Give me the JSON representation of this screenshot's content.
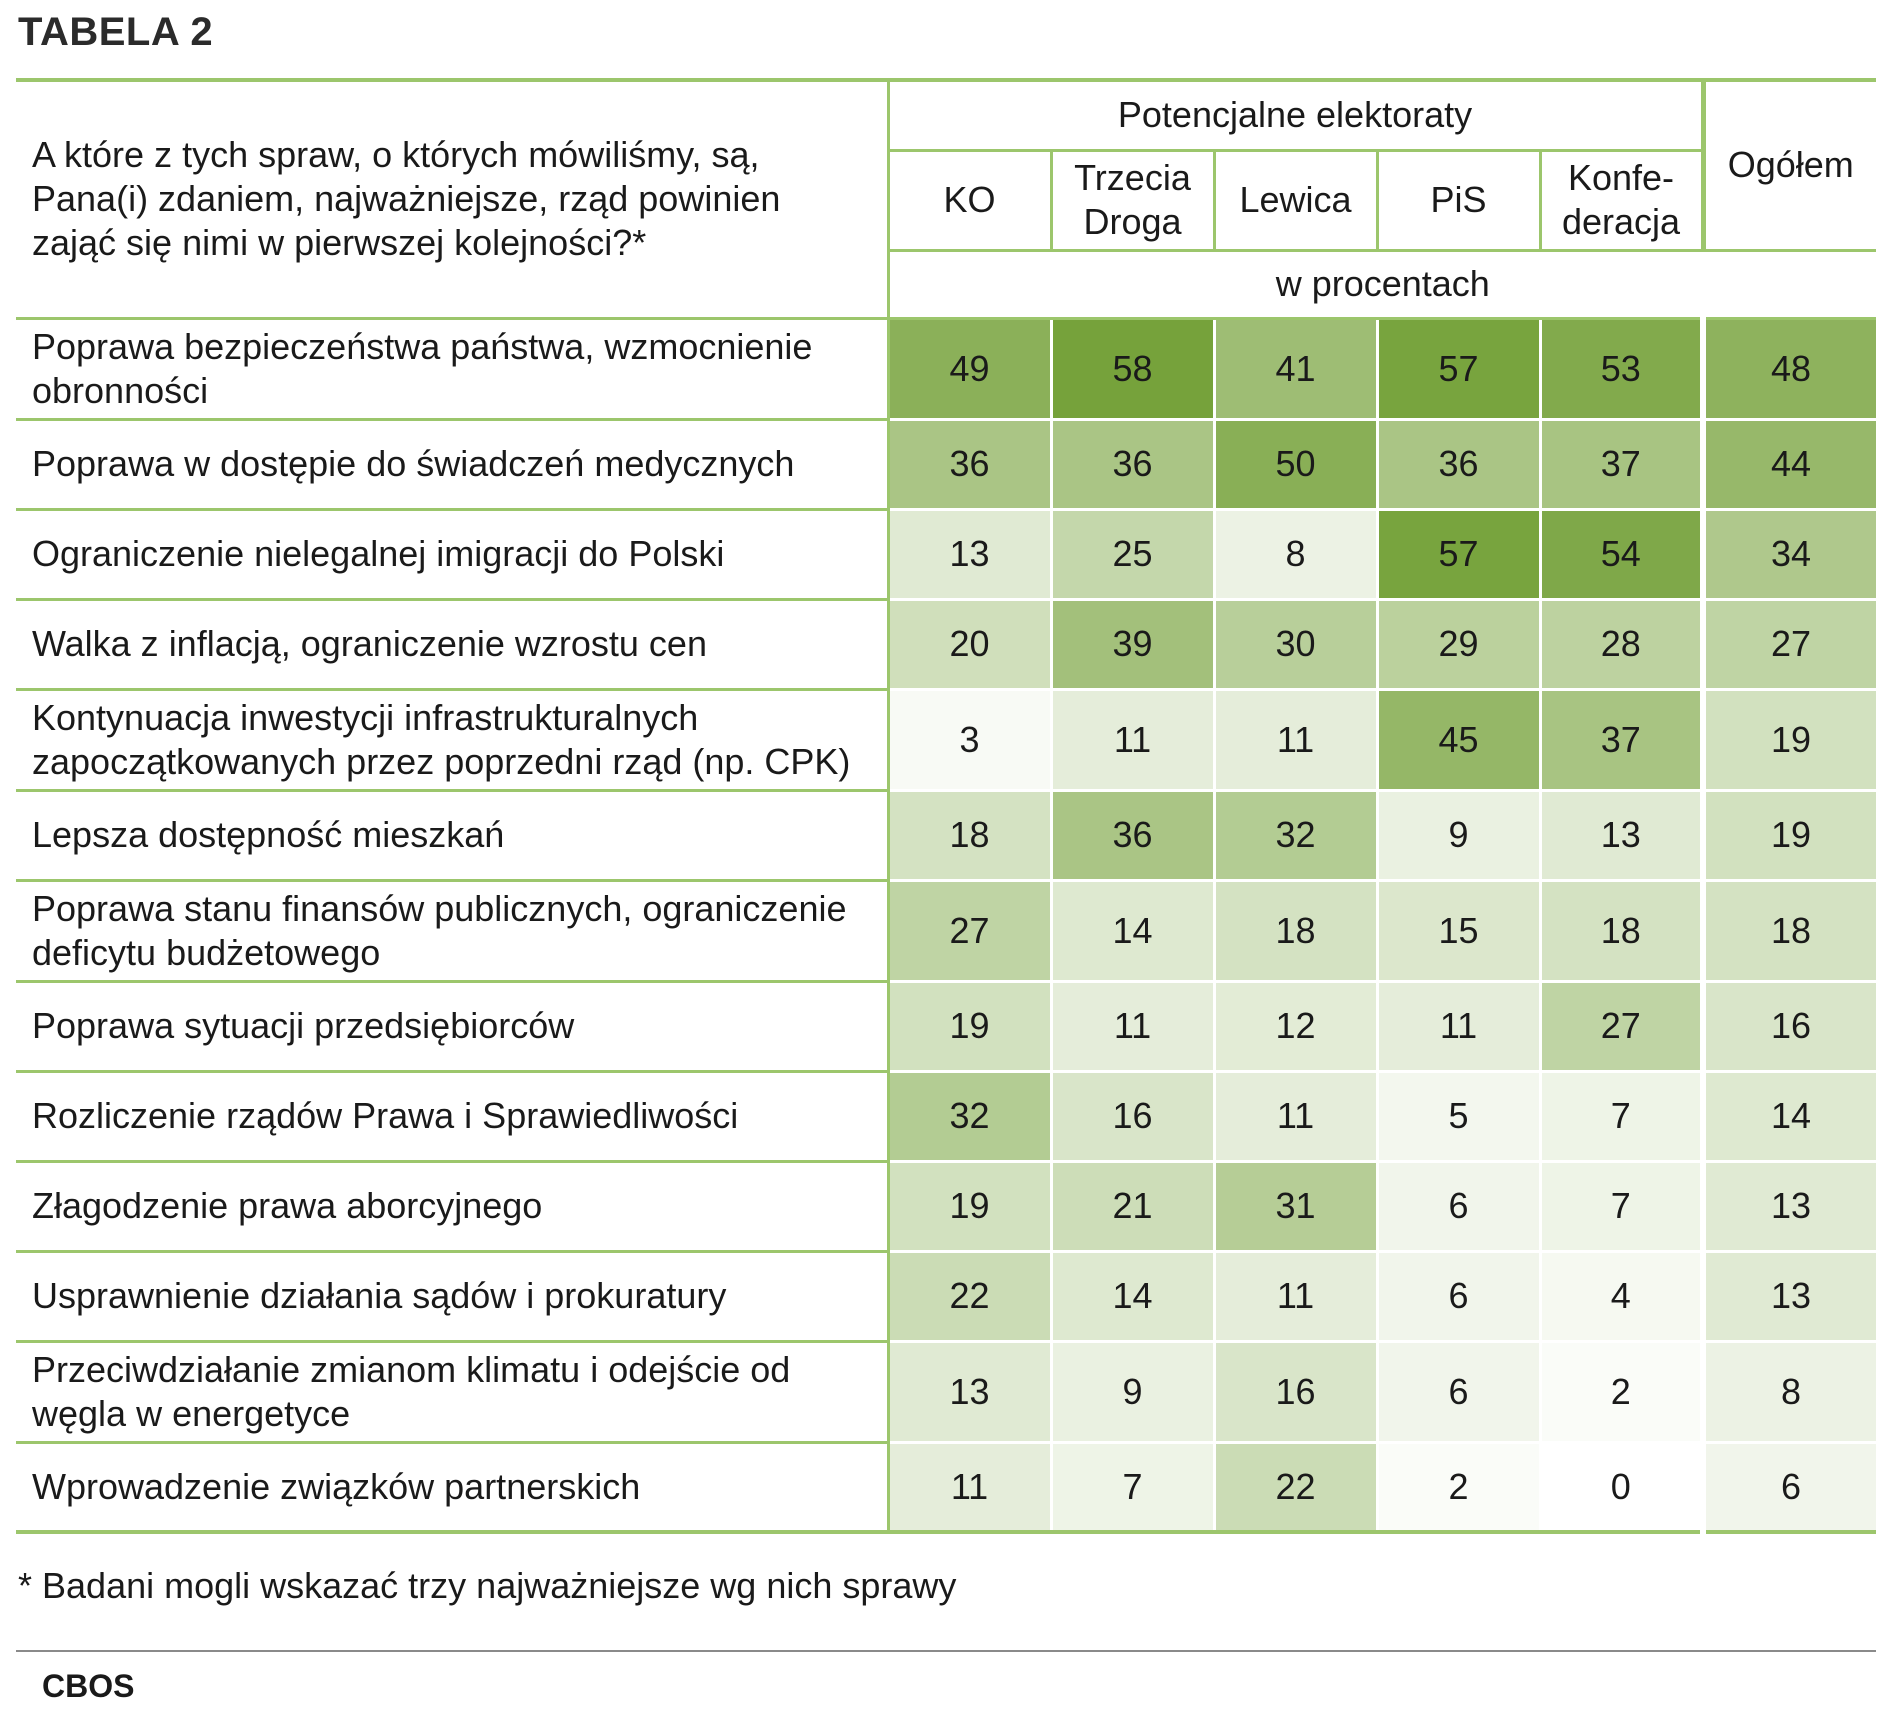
{
  "title": "TABELA 2",
  "question": "A które z tych spraw, o których mówiliśmy, są, Pana(i) zdaniem, najważniejsze, rząd powinien zająć się nimi w pierwszej kolejności?*",
  "group_header": "Potencjalne elektoraty",
  "total_header": "Ogółem",
  "unit": "w procentach",
  "columns": [
    "KO",
    "Trzecia Droga",
    "Lewica",
    "PiS",
    "Konfe-deracja"
  ],
  "rows": [
    {
      "label": "Poprawa bezpieczeństwa państwa, wzmocnienie obronności",
      "values": [
        49,
        58,
        41,
        57,
        53
      ],
      "total": 48
    },
    {
      "label": "Poprawa w dostępie do świadczeń medycznych",
      "values": [
        36,
        36,
        50,
        36,
        37
      ],
      "total": 44
    },
    {
      "label": "Ograniczenie nielegalnej imigracji do Polski",
      "values": [
        13,
        25,
        8,
        57,
        54
      ],
      "total": 34
    },
    {
      "label": "Walka z inflacją, ograniczenie wzrostu cen",
      "values": [
        20,
        39,
        30,
        29,
        28
      ],
      "total": 27
    },
    {
      "label": "Kontynuacja inwestycji infrastrukturalnych zapoczątkowanych przez poprzedni rząd (np. CPK)",
      "values": [
        3,
        11,
        11,
        45,
        37
      ],
      "total": 19
    },
    {
      "label": "Lepsza dostępność mieszkań",
      "values": [
        18,
        36,
        32,
        9,
        13
      ],
      "total": 19
    },
    {
      "label": "Poprawa stanu finansów publicznych, ograniczenie deficytu budżetowego",
      "values": [
        27,
        14,
        18,
        15,
        18
      ],
      "total": 18
    },
    {
      "label": "Poprawa sytuacji przedsiębiorców",
      "values": [
        19,
        11,
        12,
        11,
        27
      ],
      "total": 16
    },
    {
      "label": "Rozliczenie rządów Prawa i Sprawiedliwości",
      "values": [
        32,
        16,
        11,
        5,
        7
      ],
      "total": 14
    },
    {
      "label": "Złagodzenie prawa aborcyjnego",
      "values": [
        19,
        21,
        31,
        6,
        7
      ],
      "total": 13
    },
    {
      "label": "Usprawnienie działania sądów i prokuratury",
      "values": [
        22,
        14,
        11,
        6,
        4
      ],
      "total": 13
    },
    {
      "label": "Przeciwdziałanie zmianom klimatu i odejście od węgla w energetyce",
      "values": [
        13,
        9,
        16,
        6,
        2
      ],
      "total": 8
    },
    {
      "label": "Wprowadzenie związków partnerskich",
      "values": [
        11,
        7,
        22,
        2,
        0
      ],
      "total": 6
    }
  ],
  "footnote": "* Badani mogli wskazać trzy najważniejsze wg nich sprawy",
  "source": "CBOS",
  "colors": {
    "accent_green": "#9cc66c",
    "heat_high": "#76a23b",
    "heat_low": "#ffffff"
  }
}
